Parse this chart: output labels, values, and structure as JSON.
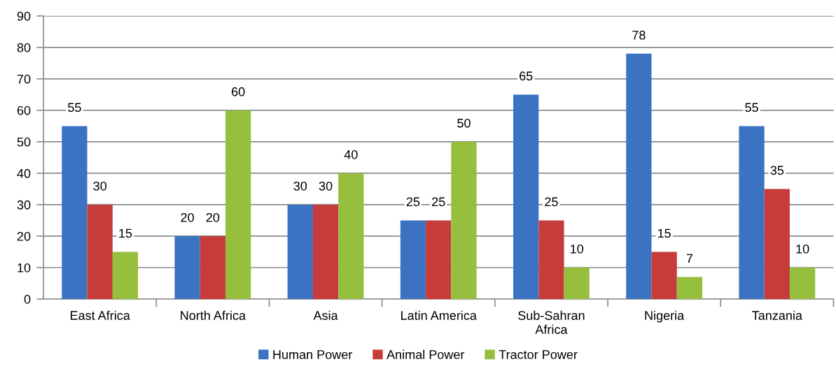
{
  "chart_data": {
    "type": "bar",
    "categories": [
      "East Africa",
      "North Africa",
      "Asia",
      "Latin America",
      "Sub-Sahran Africa",
      "Nigeria",
      "Tanzania"
    ],
    "series": [
      {
        "name": "Human Power",
        "color": "#3b73c2",
        "values": [
          55,
          20,
          30,
          25,
          65,
          78,
          55
        ]
      },
      {
        "name": "Animal Power",
        "color": "#c63c3b",
        "values": [
          30,
          20,
          30,
          25,
          25,
          15,
          35
        ]
      },
      {
        "name": "Tractor Power",
        "color": "#96bf3d",
        "values": [
          15,
          60,
          40,
          50,
          10,
          7,
          10
        ]
      }
    ],
    "ylim": [
      0,
      90
    ],
    "yticks": [
      0,
      10,
      20,
      30,
      40,
      50,
      60,
      70,
      80,
      90
    ],
    "grid": "y",
    "legend": "bottom",
    "data_labels": true
  }
}
